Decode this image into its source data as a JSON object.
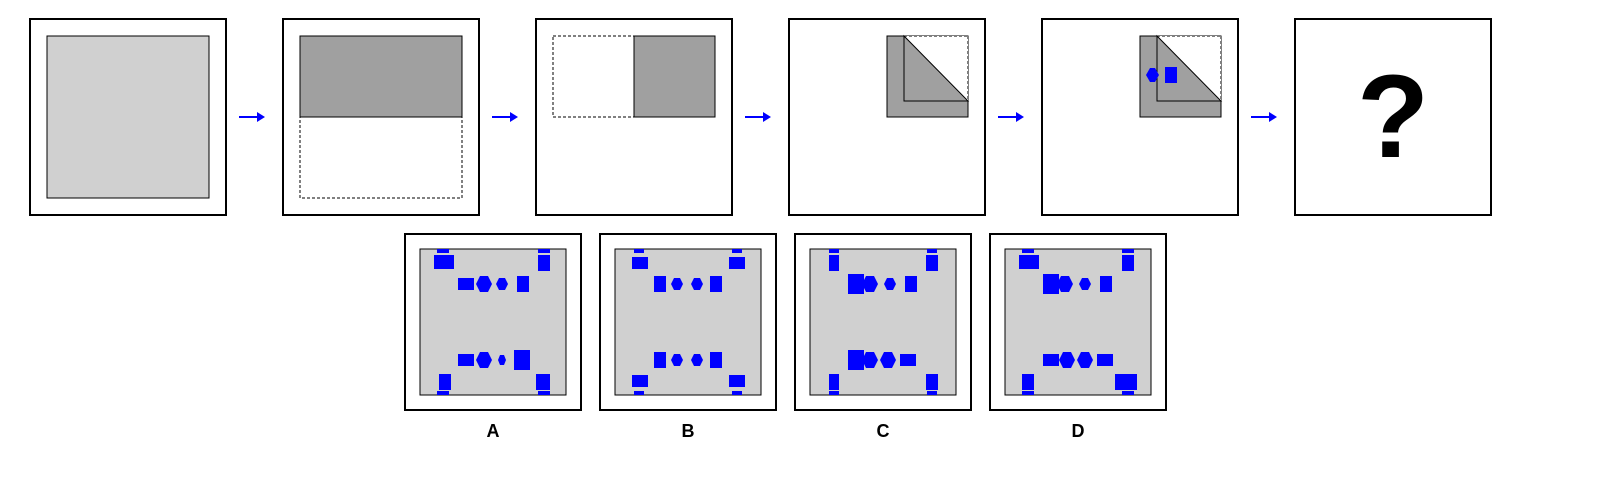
{
  "sequence": {
    "steps": [
      "unfolded-square",
      "fold-top-down",
      "fold-left-to-right",
      "fold-diagonal",
      "punch-holes"
    ],
    "question_mark": "?"
  },
  "options": [
    {
      "label": "A"
    },
    {
      "label": "B"
    },
    {
      "label": "C"
    },
    {
      "label": "D"
    }
  ],
  "colors": {
    "paper_light": "#d0d0d0",
    "paper_dark": "#a0a0a0",
    "paper_folded": "#9e9e9e",
    "hole": "#0000ff",
    "arrow": "#0000ff"
  },
  "icons": {
    "arrow": "right-arrow-icon",
    "hexagon": "hexagon-hole-icon",
    "rectangle": "rectangle-hole-icon"
  }
}
